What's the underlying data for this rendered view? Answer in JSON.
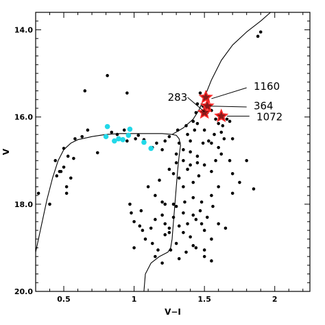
{
  "chart_data": {
    "type": "scatter",
    "title": "",
    "xlabel": "V−I",
    "ylabel": "V",
    "xlim": [
      0.3,
      2.25
    ],
    "ylim": [
      20.0,
      13.6
    ],
    "y_inverted": true,
    "xticks": [
      {
        "value": 0.5,
        "label": "0.5"
      },
      {
        "value": 1.0,
        "label": "1"
      },
      {
        "value": 1.5,
        "label": "1.5"
      },
      {
        "value": 2.0,
        "label": "2"
      }
    ],
    "yticks": [
      {
        "value": 14.0,
        "label": "14.0"
      },
      {
        "value": 16.0,
        "label": "16.0"
      },
      {
        "value": 18.0,
        "label": "18.0"
      },
      {
        "value": 20.0,
        "label": "20.0"
      }
    ],
    "grid": false,
    "colors": {
      "stars": "#000000",
      "blue_stragglers": "#22d8e8",
      "highlight_fill": "#8b1a1a",
      "highlight_edge": "#ff2a2a",
      "isochrone": "#000000"
    },
    "isochrone": {
      "name": "",
      "points": [
        [
          0.3,
          19.1
        ],
        [
          0.34,
          18.5
        ],
        [
          0.38,
          17.9
        ],
        [
          0.42,
          17.4
        ],
        [
          0.46,
          17.0
        ],
        [
          0.5,
          16.75
        ],
        [
          0.55,
          16.6
        ],
        [
          0.6,
          16.52
        ],
        [
          0.7,
          16.45
        ],
        [
          0.8,
          16.4
        ],
        [
          0.9,
          16.38
        ],
        [
          1.0,
          16.38
        ],
        [
          1.1,
          16.38
        ],
        [
          1.2,
          16.38
        ],
        [
          1.27,
          16.4
        ],
        [
          1.3,
          16.42
        ],
        [
          1.32,
          16.5
        ],
        [
          1.33,
          16.65
        ],
        [
          1.32,
          16.9
        ],
        [
          1.31,
          17.2
        ],
        [
          1.3,
          17.6
        ],
        [
          1.29,
          18.0
        ],
        [
          1.28,
          18.4
        ],
        [
          1.27,
          18.8
        ],
        [
          1.26,
          19.0
        ],
        [
          1.24,
          19.1
        ],
        [
          1.18,
          19.2
        ],
        [
          1.12,
          19.35
        ],
        [
          1.08,
          19.6
        ],
        [
          1.07,
          20.0
        ],
        [
          1.27,
          16.4
        ],
        [
          1.35,
          16.25
        ],
        [
          1.42,
          16.05
        ],
        [
          1.46,
          15.85
        ],
        [
          1.5,
          15.55
        ],
        [
          1.55,
          15.15
        ],
        [
          1.62,
          14.7
        ],
        [
          1.7,
          14.35
        ],
        [
          1.8,
          14.05
        ],
        [
          1.9,
          13.8
        ],
        [
          1.97,
          13.6
        ]
      ]
    },
    "series": [
      {
        "name": "",
        "marker": "dot",
        "points": [
          [
            0.32,
            17.75
          ],
          [
            0.4,
            18.0
          ],
          [
            0.44,
            17.0
          ],
          [
            0.45,
            17.35
          ],
          [
            0.47,
            17.25
          ],
          [
            0.48,
            17.25
          ],
          [
            0.5,
            17.15
          ],
          [
            0.52,
            17.6
          ],
          [
            0.5,
            16.72
          ],
          [
            0.53,
            16.9
          ],
          [
            0.55,
            17.4
          ],
          [
            0.52,
            17.75
          ],
          [
            0.58,
            16.5
          ],
          [
            0.57,
            16.95
          ],
          [
            0.63,
            16.45
          ],
          [
            0.67,
            16.3
          ],
          [
            0.65,
            15.4
          ],
          [
            0.74,
            16.82
          ],
          [
            0.81,
            15.05
          ],
          [
            0.84,
            16.35
          ],
          [
            0.88,
            16.4
          ],
          [
            0.95,
            16.55
          ],
          [
            0.93,
            16.3
          ],
          [
            1.01,
            16.5
          ],
          [
            1.03,
            16.42
          ],
          [
            1.07,
            16.52
          ],
          [
            0.95,
            15.45
          ],
          [
            0.97,
            18.0
          ],
          [
            1.13,
            16.7
          ],
          [
            1.16,
            16.6
          ],
          [
            1.22,
            16.55
          ],
          [
            1.2,
            16.75
          ],
          [
            1.25,
            16.45
          ],
          [
            1.31,
            16.3
          ],
          [
            1.37,
            16.2
          ],
          [
            1.42,
            16.1
          ],
          [
            1.43,
            16.3
          ],
          [
            1.44,
            15.9
          ],
          [
            1.45,
            15.7
          ],
          [
            1.47,
            15.45
          ],
          [
            1.49,
            15.75
          ],
          [
            1.52,
            15.9
          ],
          [
            1.55,
            15.85
          ],
          [
            1.58,
            16.05
          ],
          [
            1.6,
            15.95
          ],
          [
            1.63,
            16.2
          ],
          [
            1.66,
            16.05
          ],
          [
            1.68,
            16.1
          ],
          [
            1.7,
            16.5
          ],
          [
            1.64,
            16.5
          ],
          [
            1.57,
            16.4
          ],
          [
            1.53,
            16.55
          ],
          [
            1.49,
            16.6
          ],
          [
            1.45,
            16.9
          ],
          [
            1.4,
            16.8
          ],
          [
            1.35,
            16.75
          ],
          [
            1.3,
            17.05
          ],
          [
            1.28,
            17.3
          ],
          [
            1.25,
            17.2
          ],
          [
            1.32,
            17.4
          ],
          [
            1.35,
            17.6
          ],
          [
            1.38,
            17.2
          ],
          [
            1.42,
            17.5
          ],
          [
            1.46,
            17.35
          ],
          [
            1.5,
            17.1
          ],
          [
            1.55,
            17.25
          ],
          [
            1.58,
            17.0
          ],
          [
            1.62,
            16.85
          ],
          [
            1.68,
            17.0
          ],
          [
            1.7,
            17.3
          ],
          [
            1.6,
            17.6
          ],
          [
            1.55,
            17.8
          ],
          [
            1.48,
            17.95
          ],
          [
            1.42,
            17.85
          ],
          [
            1.36,
            17.95
          ],
          [
            1.3,
            18.05
          ],
          [
            1.22,
            18.0
          ],
          [
            1.2,
            18.25
          ],
          [
            1.15,
            18.35
          ],
          [
            1.12,
            18.55
          ],
          [
            1.08,
            18.8
          ],
          [
            1.04,
            18.5
          ],
          [
            1.0,
            18.4
          ],
          [
            1.0,
            19.0
          ],
          [
            1.05,
            18.15
          ],
          [
            1.13,
            18.9
          ],
          [
            1.17,
            19.05
          ],
          [
            1.22,
            18.7
          ],
          [
            1.25,
            18.55
          ],
          [
            1.28,
            18.3
          ],
          [
            1.32,
            18.5
          ],
          [
            1.35,
            18.2
          ],
          [
            1.38,
            18.45
          ],
          [
            1.4,
            18.75
          ],
          [
            1.42,
            18.95
          ],
          [
            1.44,
            18.35
          ],
          [
            1.47,
            18.15
          ],
          [
            1.5,
            18.6
          ],
          [
            1.52,
            18.3
          ],
          [
            1.55,
            18.8
          ],
          [
            1.56,
            18.05
          ],
          [
            1.6,
            18.45
          ],
          [
            1.65,
            18.55
          ],
          [
            1.3,
            18.9
          ],
          [
            1.26,
            19.05
          ],
          [
            1.2,
            19.35
          ],
          [
            1.32,
            19.25
          ],
          [
            1.37,
            19.1
          ],
          [
            1.44,
            19.0
          ],
          [
            1.5,
            19.2
          ],
          [
            1.55,
            19.3
          ],
          [
            1.28,
            18.0
          ],
          [
            1.1,
            17.6
          ],
          [
            1.15,
            17.8
          ],
          [
            1.2,
            17.95
          ],
          [
            1.35,
            17.0
          ],
          [
            1.4,
            17.1
          ],
          [
            1.45,
            17.05
          ],
          [
            1.3,
            16.85
          ],
          [
            1.4,
            16.55
          ],
          [
            1.5,
            16.3
          ],
          [
            1.55,
            16.6
          ],
          [
            1.6,
            16.15
          ],
          [
            1.5,
            19.05
          ],
          [
            1.35,
            18.65
          ],
          [
            1.25,
            18.65
          ],
          [
            1.15,
            19.2
          ],
          [
            1.06,
            18.6
          ],
          [
            0.98,
            18.2
          ],
          [
            1.18,
            17.45
          ],
          [
            1.7,
            17.75
          ],
          [
            1.75,
            17.5
          ],
          [
            1.8,
            17.0
          ],
          [
            1.85,
            17.65
          ],
          [
            1.88,
            14.15
          ],
          [
            1.9,
            14.05
          ],
          [
            1.6,
            16.7
          ],
          [
            1.38,
            16.4
          ],
          [
            1.45,
            16.15
          ],
          [
            1.32,
            16.6
          ],
          [
            1.42,
            18.25
          ],
          [
            1.48,
            18.45
          ],
          [
            1.22,
            18.45
          ],
          [
            1.62,
            16.35
          ]
        ]
      },
      {
        "name": "",
        "marker": "cyan-dot",
        "points": [
          [
            0.8,
            16.45
          ],
          [
            0.81,
            16.22
          ],
          [
            0.86,
            16.55
          ],
          [
            0.89,
            16.5
          ],
          [
            0.92,
            16.52
          ],
          [
            0.96,
            16.42
          ],
          [
            0.97,
            16.28
          ],
          [
            1.07,
            16.58
          ],
          [
            1.12,
            16.72
          ]
        ]
      },
      {
        "name": "",
        "marker": "red-star",
        "points": [
          [
            1.51,
            15.55
          ],
          [
            1.52,
            15.75
          ],
          [
            1.5,
            15.9
          ],
          [
            1.62,
            15.98
          ]
        ]
      }
    ],
    "annotations": [
      {
        "label": "283",
        "text_at": [
          1.33,
          15.55
        ],
        "line_from": [
          1.38,
          15.55
        ],
        "line_to": [
          1.5,
          15.88
        ]
      },
      {
        "label": "1160",
        "text_at": [
          1.85,
          15.3
        ],
        "line_from": [
          1.8,
          15.33
        ],
        "line_to": [
          1.55,
          15.58
        ]
      },
      {
        "label": "364",
        "text_at": [
          1.85,
          15.75
        ],
        "line_from": [
          1.8,
          15.77
        ],
        "line_to": [
          1.54,
          15.75
        ]
      },
      {
        "label": "1072",
        "text_at": [
          1.87,
          16.0
        ],
        "line_from": [
          1.82,
          15.98
        ],
        "line_to": [
          1.66,
          15.98
        ]
      }
    ]
  }
}
